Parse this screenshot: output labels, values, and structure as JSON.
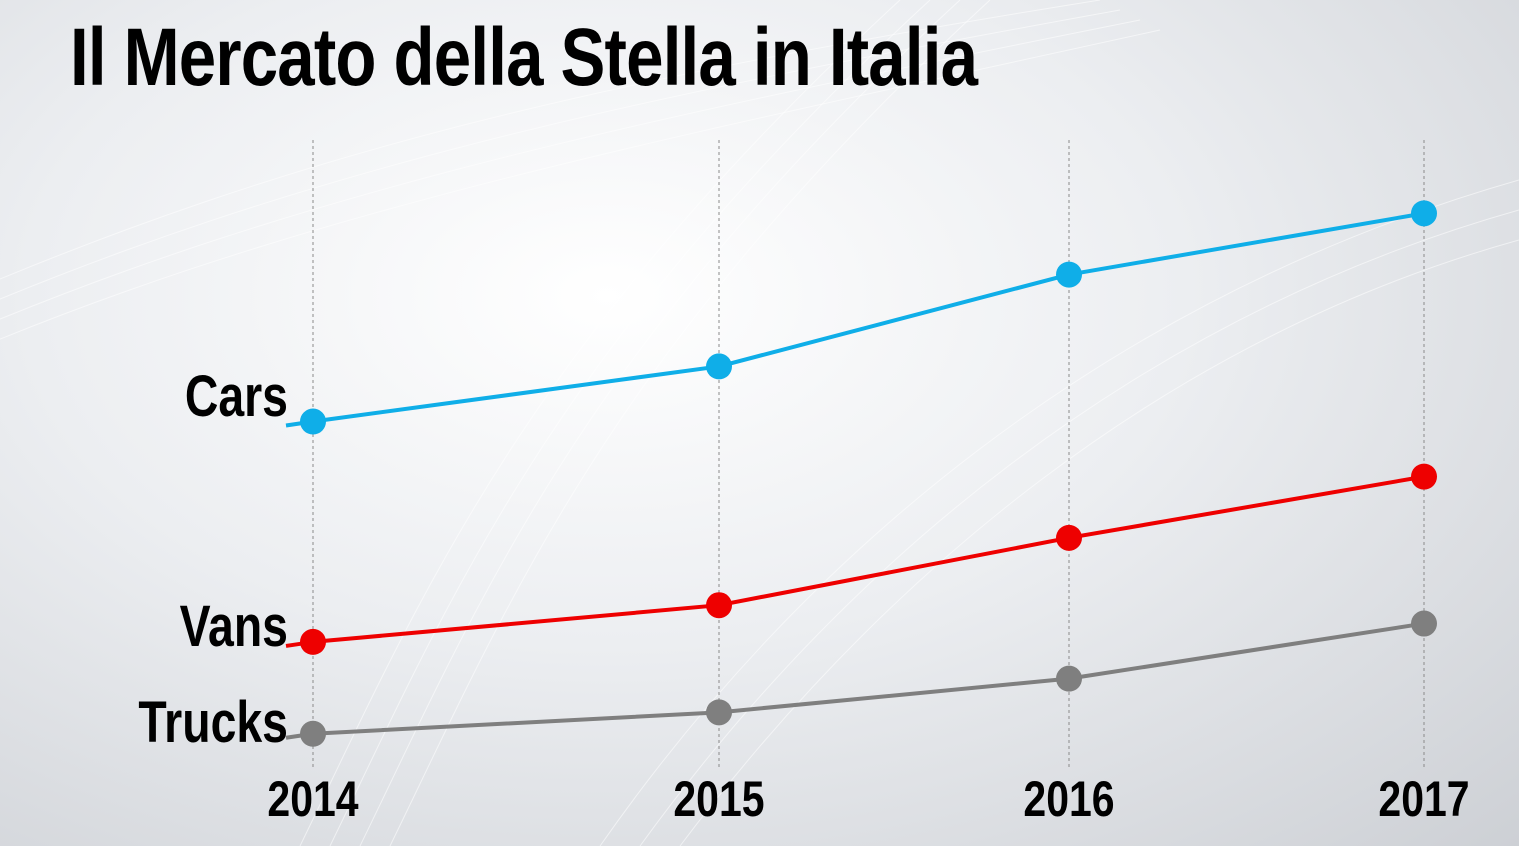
{
  "title": "Il Mercato della Stella in Italia",
  "chart_data": {
    "type": "line",
    "x": [
      "2014",
      "2015",
      "2016",
      "2017"
    ],
    "series": [
      {
        "name": "Cars",
        "color": "#0faee8",
        "values": [
          73,
          82,
          97,
          107
        ]
      },
      {
        "name": "Vans",
        "color": "#ee0000",
        "values": [
          37,
          43,
          54,
          64
        ]
      },
      {
        "name": "Trucks",
        "color": "#7f7f7f",
        "values": [
          22,
          25.5,
          31,
          40
        ]
      }
    ],
    "grid": "vertical-dashed",
    "legend": "inline-left"
  }
}
